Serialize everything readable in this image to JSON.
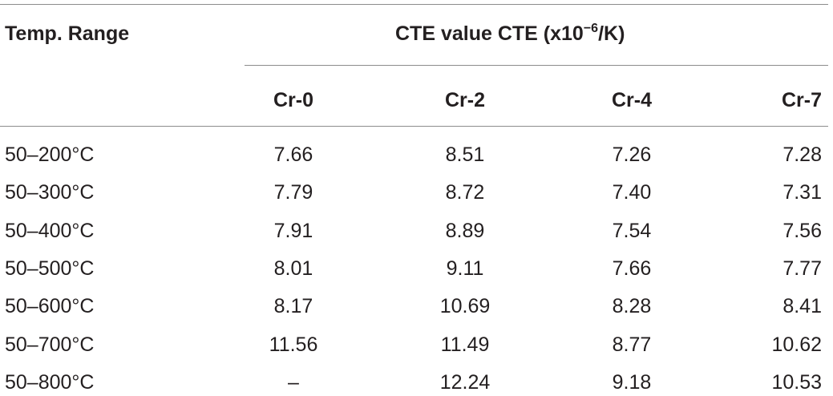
{
  "table": {
    "row_header_label": "Temp. Range",
    "group_header": {
      "prefix": "CTE value CTE (x10",
      "exponent": "−6",
      "suffix": "/K)"
    },
    "columns": [
      "Cr-0",
      "Cr-2",
      "Cr-4",
      "Cr-7"
    ],
    "rows": [
      {
        "range": "50–200°C",
        "values": [
          "7.66",
          "8.51",
          "7.26",
          "7.28"
        ]
      },
      {
        "range": "50–300°C",
        "values": [
          "7.79",
          "8.72",
          "7.40",
          "7.31"
        ]
      },
      {
        "range": "50–400°C",
        "values": [
          "7.91",
          "8.89",
          "7.54",
          "7.56"
        ]
      },
      {
        "range": "50–500°C",
        "values": [
          "8.01",
          "9.11",
          "7.66",
          "7.77"
        ]
      },
      {
        "range": "50–600°C",
        "values": [
          "8.17",
          "10.69",
          "8.28",
          "8.41"
        ]
      },
      {
        "range": "50–700°C",
        "values": [
          "11.56",
          "11.49",
          "8.77",
          "10.62"
        ]
      },
      {
        "range": "50–800°C",
        "values": [
          "–",
          "12.24",
          "9.18",
          "10.53"
        ]
      }
    ]
  }
}
